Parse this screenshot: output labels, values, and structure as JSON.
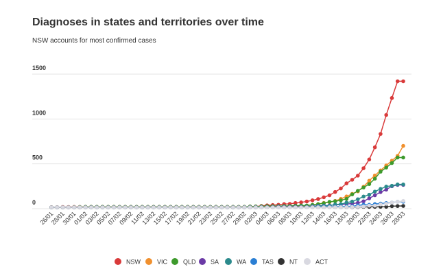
{
  "chart_data": {
    "type": "line",
    "title": "Diagnoses in states and territories over time",
    "subtitle": "NSW accounts for most confirmed cases",
    "categories": [
      "26/01",
      null,
      "28/01",
      null,
      "30/01",
      null,
      "01/02",
      null,
      "03/02",
      null,
      "05/02",
      null,
      "07/02",
      null,
      "09/02",
      null,
      "11/02",
      null,
      "13/02",
      null,
      "15/02",
      null,
      "17/02",
      null,
      "19/02",
      null,
      "21/02",
      null,
      "23/02",
      null,
      "25/02",
      null,
      "27/02",
      null,
      "29/02",
      null,
      "02/03",
      null,
      "04/03",
      null,
      "06/03",
      null,
      "08/03",
      null,
      "10/03",
      null,
      "12/03",
      null,
      "14/03",
      null,
      "16/03",
      null,
      "18/03",
      null,
      "20/03",
      null,
      "22/03",
      null,
      "24/03",
      null,
      "26/03",
      null,
      "28/03"
    ],
    "series": [
      {
        "name": "NSW",
        "color": "#d93a3a",
        "values": [
          1,
          1,
          3,
          3,
          4,
          4,
          4,
          4,
          4,
          4,
          4,
          4,
          4,
          4,
          4,
          4,
          4,
          4,
          4,
          4,
          4,
          4,
          4,
          4,
          4,
          4,
          4,
          4,
          4,
          4,
          4,
          4,
          4,
          4,
          4,
          6,
          9,
          15,
          22,
          25,
          28,
          36,
          38,
          48,
          55,
          65,
          78,
          92,
          112,
          134,
          171,
          210,
          267,
          307,
          353,
          436,
          533,
          669,
          818,
          1029,
          1219,
          1405,
          1405
        ]
      },
      {
        "name": "VIC",
        "color": "#f0902e",
        "values": [
          1,
          1,
          1,
          1,
          2,
          2,
          4,
          4,
          4,
          4,
          4,
          4,
          4,
          4,
          4,
          4,
          4,
          4,
          4,
          4,
          4,
          4,
          4,
          4,
          4,
          4,
          4,
          4,
          4,
          4,
          4,
          4,
          4,
          4,
          4,
          9,
          9,
          10,
          10,
          10,
          11,
          11,
          11,
          15,
          15,
          18,
          27,
          36,
          49,
          57,
          71,
          94,
          121,
          150,
          178,
          229,
          296,
          355,
          411,
          466,
          520,
          574,
          685
        ]
      },
      {
        "name": "QLD",
        "color": "#3d9a2c",
        "values": [
          0,
          0,
          0,
          1,
          2,
          3,
          5,
          5,
          5,
          5,
          5,
          5,
          5,
          5,
          5,
          5,
          5,
          5,
          5,
          5,
          5,
          5,
          5,
          5,
          5,
          5,
          5,
          5,
          5,
          5,
          5,
          5,
          5,
          5,
          5,
          9,
          9,
          11,
          13,
          13,
          13,
          15,
          15,
          18,
          20,
          20,
          27,
          35,
          46,
          61,
          68,
          78,
          94,
          144,
          184,
          221,
          259,
          319,
          397,
          443,
          493,
          555,
          555
        ]
      },
      {
        "name": "SA",
        "color": "#6b3aa6",
        "values": [
          0,
          0,
          0,
          0,
          0,
          0,
          2,
          2,
          2,
          2,
          2,
          2,
          2,
          2,
          2,
          2,
          2,
          2,
          2,
          2,
          2,
          2,
          2,
          2,
          2,
          2,
          2,
          2,
          2,
          2,
          2,
          2,
          2,
          2,
          2,
          3,
          3,
          3,
          3,
          5,
          7,
          7,
          7,
          7,
          7,
          7,
          12,
          16,
          19,
          20,
          29,
          30,
          37,
          42,
          50,
          67,
          100,
          134,
          170,
          197,
          235,
          250,
          250
        ]
      },
      {
        "name": "WA",
        "color": "#2b8a8c",
        "values": [
          0,
          0,
          0,
          0,
          0,
          0,
          0,
          0,
          0,
          0,
          0,
          0,
          0,
          0,
          0,
          0,
          0,
          0,
          0,
          0,
          0,
          0,
          0,
          0,
          0,
          0,
          0,
          0,
          0,
          0,
          0,
          0,
          0,
          0,
          0,
          2,
          2,
          2,
          2,
          3,
          3,
          3,
          3,
          3,
          4,
          6,
          9,
          14,
          17,
          18,
          31,
          35,
          52,
          64,
          90,
          120,
          140,
          175,
          205,
          231,
          240,
          255,
          255
        ]
      },
      {
        "name": "TAS",
        "color": "#2a7ed3",
        "values": [
          0,
          0,
          0,
          0,
          0,
          0,
          0,
          0,
          0,
          0,
          0,
          0,
          0,
          0,
          0,
          0,
          0,
          0,
          0,
          0,
          0,
          0,
          0,
          0,
          0,
          0,
          0,
          0,
          0,
          0,
          0,
          0,
          0,
          0,
          0,
          0,
          0,
          1,
          1,
          1,
          1,
          1,
          1,
          1,
          1,
          1,
          6,
          6,
          7,
          7,
          7,
          10,
          10,
          11,
          22,
          28,
          28,
          36,
          42,
          47,
          53,
          62,
          62
        ]
      },
      {
        "name": "NT",
        "color": "#333333",
        "values": [
          0,
          0,
          0,
          0,
          0,
          0,
          0,
          0,
          0,
          0,
          0,
          0,
          0,
          0,
          0,
          0,
          0,
          0,
          0,
          0,
          0,
          0,
          0,
          0,
          0,
          0,
          0,
          0,
          0,
          0,
          0,
          0,
          0,
          0,
          0,
          0,
          0,
          0,
          1,
          1,
          1,
          1,
          1,
          1,
          1,
          1,
          1,
          1,
          1,
          1,
          1,
          1,
          1,
          1,
          3,
          5,
          5,
          5,
          6,
          6,
          12,
          14,
          15
        ]
      },
      {
        "name": "ACT",
        "color": "#d9d9e1",
        "values": [
          0,
          0,
          0,
          0,
          0,
          0,
          0,
          0,
          0,
          0,
          0,
          0,
          0,
          0,
          0,
          0,
          0,
          0,
          0,
          0,
          0,
          0,
          0,
          0,
          0,
          0,
          0,
          0,
          0,
          0,
          0,
          0,
          0,
          0,
          0,
          0,
          0,
          0,
          0,
          0,
          0,
          0,
          0,
          0,
          0,
          0,
          1,
          1,
          1,
          1,
          1,
          2,
          2,
          3,
          6,
          9,
          19,
          19,
          32,
          39,
          53,
          62,
          71
        ]
      }
    ],
    "ylim": [
      0,
      1500
    ],
    "yticks": [
      0,
      500,
      1000,
      1500
    ],
    "grid": true,
    "legend": "bottom"
  }
}
